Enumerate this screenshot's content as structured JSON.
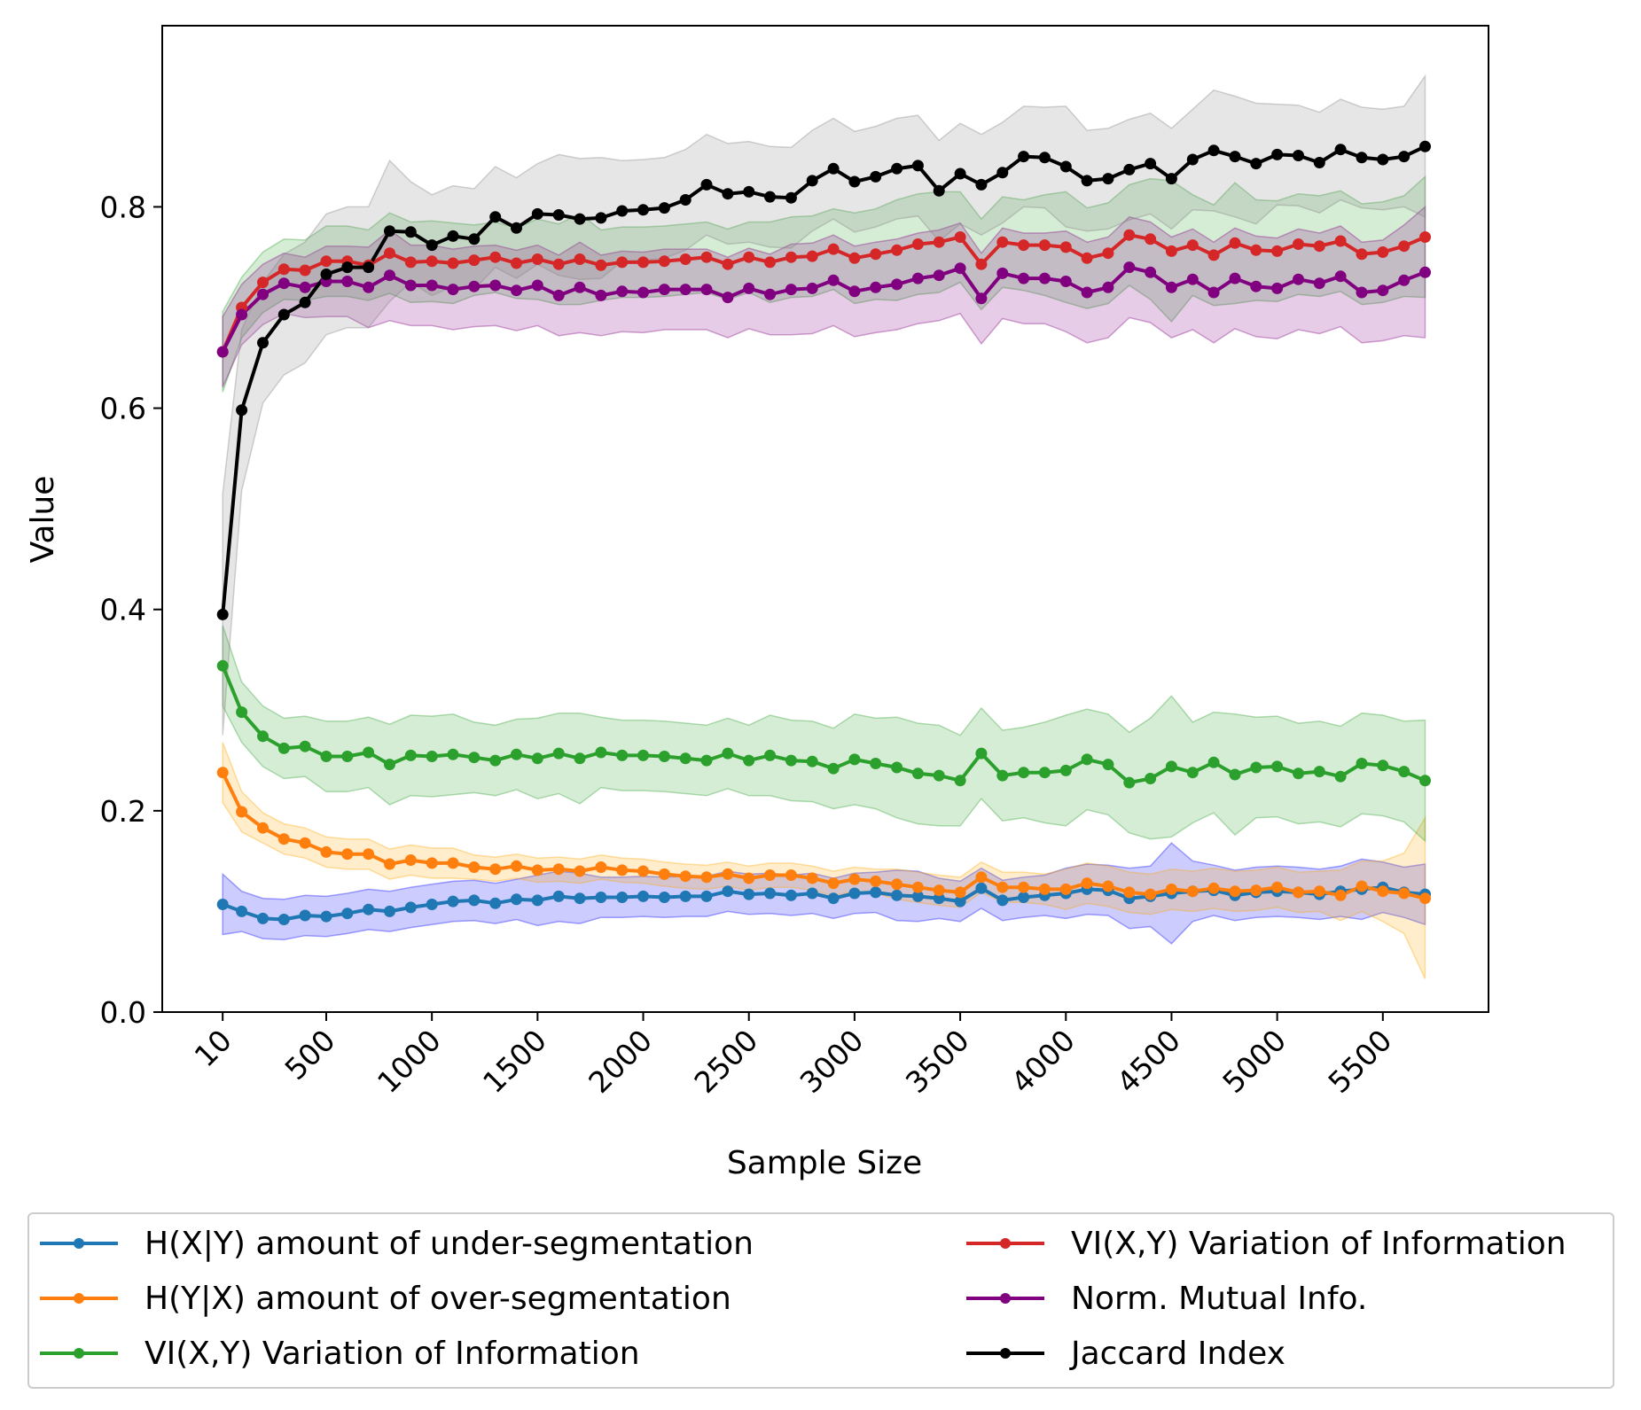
{
  "chart_data": {
    "type": "line",
    "title": "",
    "xlabel": "Sample Size",
    "ylabel": "Value",
    "xlim": [
      -276,
      6000
    ],
    "ylim": [
      0.0,
      0.98
    ],
    "grid": false,
    "legend_position": "below",
    "x_ticks": [
      10,
      500,
      1000,
      1500,
      2000,
      2500,
      3000,
      3500,
      4000,
      4500,
      5000,
      5500
    ],
    "y_ticks": [
      "0.0",
      "0.2",
      "0.4",
      "0.6",
      "0.8"
    ],
    "x": [
      10,
      100,
      200,
      300,
      400,
      500,
      600,
      700,
      800,
      900,
      1000,
      1100,
      1200,
      1300,
      1400,
      1500,
      1600,
      1700,
      1800,
      1900,
      2000,
      2100,
      2200,
      2300,
      2400,
      2500,
      2600,
      2700,
      2800,
      2900,
      3000,
      3100,
      3200,
      3300,
      3400,
      3500,
      3600,
      3700,
      3800,
      3900,
      4000,
      4100,
      4200,
      4300,
      4400,
      4500,
      4600,
      4700,
      4800,
      4900,
      5000,
      5100,
      5200,
      5300,
      5400,
      5500,
      5600,
      5700
    ],
    "series": [
      {
        "name": "H(X|Y) amount of under-segmentation",
        "color": "#1f77b4",
        "band_color": "#0000ff",
        "values": [
          0.107,
          0.1,
          0.093,
          0.092,
          0.096,
          0.095,
          0.098,
          0.102,
          0.1,
          0.104,
          0.107,
          0.11,
          0.111,
          0.108,
          0.112,
          0.111,
          0.115,
          0.113,
          0.114,
          0.114,
          0.115,
          0.114,
          0.115,
          0.115,
          0.12,
          0.117,
          0.118,
          0.116,
          0.118,
          0.113,
          0.118,
          0.119,
          0.116,
          0.115,
          0.113,
          0.11,
          0.123,
          0.111,
          0.114,
          0.116,
          0.118,
          0.122,
          0.121,
          0.113,
          0.115,
          0.118,
          0.12,
          0.121,
          0.116,
          0.119,
          0.12,
          0.119,
          0.117,
          0.12,
          0.122,
          0.124,
          0.119,
          0.117
        ],
        "band": [
          0.03,
          0.02,
          0.02,
          0.02,
          0.02,
          0.02,
          0.02,
          0.02,
          0.02,
          0.02,
          0.02,
          0.02,
          0.02,
          0.02,
          0.02,
          0.025,
          0.025,
          0.025,
          0.02,
          0.02,
          0.02,
          0.02,
          0.02,
          0.02,
          0.02,
          0.02,
          0.02,
          0.02,
          0.02,
          0.02,
          0.02,
          0.02,
          0.025,
          0.025,
          0.02,
          0.02,
          0.02,
          0.02,
          0.02,
          0.02,
          0.025,
          0.025,
          0.025,
          0.03,
          0.03,
          0.05,
          0.03,
          0.025,
          0.025,
          0.025,
          0.025,
          0.025,
          0.025,
          0.025,
          0.03,
          0.025,
          0.025,
          0.03
        ]
      },
      {
        "name": "H(Y|X) amount of over-segmentation",
        "color": "#ff7f0e",
        "band_color": "#ffa500",
        "values": [
          0.238,
          0.199,
          0.183,
          0.172,
          0.168,
          0.159,
          0.157,
          0.157,
          0.147,
          0.151,
          0.148,
          0.148,
          0.144,
          0.142,
          0.145,
          0.141,
          0.142,
          0.14,
          0.144,
          0.141,
          0.14,
          0.137,
          0.135,
          0.134,
          0.137,
          0.133,
          0.136,
          0.136,
          0.133,
          0.128,
          0.132,
          0.13,
          0.127,
          0.124,
          0.121,
          0.119,
          0.134,
          0.124,
          0.124,
          0.122,
          0.122,
          0.128,
          0.125,
          0.119,
          0.117,
          0.122,
          0.12,
          0.123,
          0.12,
          0.121,
          0.124,
          0.119,
          0.12,
          0.116,
          0.125,
          0.12,
          0.118,
          0.113
        ],
        "band": [
          0.03,
          0.02,
          0.015,
          0.015,
          0.015,
          0.015,
          0.015,
          0.015,
          0.015,
          0.015,
          0.015,
          0.015,
          0.012,
          0.012,
          0.012,
          0.012,
          0.012,
          0.012,
          0.012,
          0.012,
          0.012,
          0.012,
          0.012,
          0.012,
          0.012,
          0.012,
          0.012,
          0.012,
          0.012,
          0.012,
          0.012,
          0.012,
          0.015,
          0.015,
          0.015,
          0.015,
          0.015,
          0.015,
          0.015,
          0.015,
          0.02,
          0.02,
          0.02,
          0.02,
          0.02,
          0.02,
          0.02,
          0.02,
          0.02,
          0.02,
          0.02,
          0.02,
          0.02,
          0.025,
          0.025,
          0.03,
          0.04,
          0.08
        ]
      },
      {
        "name": "VI(X,Y) Variation of Information",
        "color": "#2ca02c",
        "band_color": "#2ca02c",
        "values": [
          0.344,
          0.298,
          0.274,
          0.262,
          0.264,
          0.254,
          0.254,
          0.258,
          0.246,
          0.255,
          0.254,
          0.256,
          0.253,
          0.25,
          0.256,
          0.252,
          0.257,
          0.252,
          0.258,
          0.255,
          0.255,
          0.254,
          0.252,
          0.25,
          0.257,
          0.25,
          0.255,
          0.25,
          0.249,
          0.242,
          0.251,
          0.247,
          0.243,
          0.237,
          0.235,
          0.23,
          0.257,
          0.235,
          0.238,
          0.238,
          0.24,
          0.251,
          0.246,
          0.228,
          0.232,
          0.244,
          0.238,
          0.248,
          0.236,
          0.243,
          0.244,
          0.237,
          0.239,
          0.234,
          0.247,
          0.245,
          0.239,
          0.23
        ],
        "band": [
          0.04,
          0.03,
          0.03,
          0.03,
          0.03,
          0.035,
          0.035,
          0.035,
          0.04,
          0.04,
          0.04,
          0.04,
          0.035,
          0.035,
          0.035,
          0.04,
          0.04,
          0.045,
          0.035,
          0.035,
          0.035,
          0.035,
          0.035,
          0.035,
          0.035,
          0.035,
          0.04,
          0.04,
          0.04,
          0.04,
          0.045,
          0.045,
          0.05,
          0.05,
          0.05,
          0.045,
          0.045,
          0.045,
          0.045,
          0.05,
          0.055,
          0.05,
          0.05,
          0.05,
          0.06,
          0.07,
          0.05,
          0.05,
          0.06,
          0.05,
          0.05,
          0.05,
          0.05,
          0.05,
          0.05,
          0.05,
          0.05,
          0.06
        ]
      },
      {
        "name": "VI(X,Y) Variation of Information",
        "color": "#d62728",
        "band_color": "#2ca02c",
        "values": [
          0.656,
          0.7,
          0.725,
          0.738,
          0.737,
          0.746,
          0.746,
          0.742,
          0.754,
          0.745,
          0.746,
          0.744,
          0.747,
          0.75,
          0.744,
          0.748,
          0.743,
          0.748,
          0.742,
          0.745,
          0.745,
          0.746,
          0.748,
          0.75,
          0.743,
          0.75,
          0.745,
          0.75,
          0.751,
          0.758,
          0.749,
          0.753,
          0.757,
          0.763,
          0.765,
          0.77,
          0.743,
          0.765,
          0.762,
          0.762,
          0.76,
          0.749,
          0.754,
          0.772,
          0.768,
          0.756,
          0.762,
          0.752,
          0.764,
          0.757,
          0.756,
          0.763,
          0.761,
          0.766,
          0.753,
          0.755,
          0.761,
          0.77
        ],
        "band": [
          0.04,
          0.03,
          0.03,
          0.03,
          0.03,
          0.035,
          0.035,
          0.035,
          0.04,
          0.04,
          0.04,
          0.04,
          0.035,
          0.035,
          0.035,
          0.04,
          0.04,
          0.045,
          0.035,
          0.035,
          0.035,
          0.035,
          0.035,
          0.035,
          0.035,
          0.035,
          0.04,
          0.04,
          0.04,
          0.04,
          0.045,
          0.045,
          0.05,
          0.05,
          0.05,
          0.045,
          0.045,
          0.045,
          0.045,
          0.05,
          0.055,
          0.05,
          0.05,
          0.05,
          0.06,
          0.07,
          0.05,
          0.05,
          0.06,
          0.05,
          0.05,
          0.05,
          0.05,
          0.05,
          0.05,
          0.05,
          0.05,
          0.06
        ]
      },
      {
        "name": "Norm. Mutual Info.",
        "color": "#800080",
        "band_color": "#800080",
        "values": [
          0.656,
          0.693,
          0.713,
          0.724,
          0.72,
          0.726,
          0.726,
          0.72,
          0.732,
          0.722,
          0.722,
          0.718,
          0.721,
          0.722,
          0.717,
          0.722,
          0.712,
          0.72,
          0.712,
          0.716,
          0.715,
          0.718,
          0.718,
          0.718,
          0.71,
          0.719,
          0.713,
          0.718,
          0.719,
          0.727,
          0.716,
          0.72,
          0.723,
          0.729,
          0.732,
          0.739,
          0.709,
          0.734,
          0.729,
          0.729,
          0.726,
          0.715,
          0.72,
          0.74,
          0.735,
          0.72,
          0.728,
          0.715,
          0.729,
          0.721,
          0.719,
          0.728,
          0.724,
          0.731,
          0.715,
          0.717,
          0.727,
          0.735
        ],
        "band": [
          0.035,
          0.03,
          0.03,
          0.03,
          0.03,
          0.035,
          0.035,
          0.04,
          0.045,
          0.04,
          0.04,
          0.04,
          0.04,
          0.04,
          0.04,
          0.04,
          0.04,
          0.045,
          0.04,
          0.04,
          0.04,
          0.04,
          0.04,
          0.04,
          0.04,
          0.04,
          0.04,
          0.045,
          0.045,
          0.045,
          0.045,
          0.045,
          0.045,
          0.045,
          0.045,
          0.045,
          0.045,
          0.045,
          0.045,
          0.045,
          0.05,
          0.05,
          0.05,
          0.05,
          0.05,
          0.05,
          0.05,
          0.05,
          0.05,
          0.05,
          0.05,
          0.05,
          0.05,
          0.05,
          0.05,
          0.05,
          0.055,
          0.065
        ]
      },
      {
        "name": "Jaccard Index",
        "color": "#000000",
        "band_color": "#808080",
        "values": [
          0.395,
          0.598,
          0.665,
          0.693,
          0.705,
          0.733,
          0.74,
          0.74,
          0.776,
          0.775,
          0.762,
          0.771,
          0.768,
          0.79,
          0.779,
          0.793,
          0.792,
          0.788,
          0.789,
          0.796,
          0.797,
          0.799,
          0.807,
          0.822,
          0.813,
          0.815,
          0.81,
          0.809,
          0.826,
          0.838,
          0.825,
          0.83,
          0.838,
          0.841,
          0.816,
          0.833,
          0.822,
          0.834,
          0.85,
          0.849,
          0.84,
          0.826,
          0.828,
          0.837,
          0.843,
          0.828,
          0.847,
          0.856,
          0.85,
          0.843,
          0.852,
          0.851,
          0.844,
          0.857,
          0.849,
          0.847,
          0.85,
          0.86
        ],
        "band": [
          0.12,
          0.08,
          0.06,
          0.06,
          0.06,
          0.06,
          0.06,
          0.06,
          0.07,
          0.05,
          0.05,
          0.05,
          0.05,
          0.05,
          0.05,
          0.05,
          0.06,
          0.06,
          0.06,
          0.05,
          0.05,
          0.05,
          0.05,
          0.05,
          0.05,
          0.05,
          0.05,
          0.05,
          0.05,
          0.05,
          0.05,
          0.05,
          0.05,
          0.05,
          0.05,
          0.05,
          0.05,
          0.05,
          0.05,
          0.05,
          0.06,
          0.05,
          0.05,
          0.05,
          0.05,
          0.05,
          0.05,
          0.06,
          0.06,
          0.06,
          0.05,
          0.05,
          0.05,
          0.05,
          0.05,
          0.05,
          0.05,
          0.07
        ]
      }
    ]
  }
}
